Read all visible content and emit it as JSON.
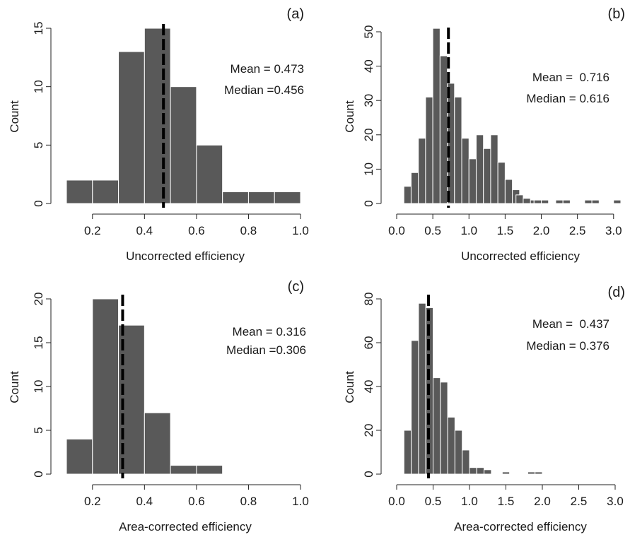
{
  "chart_data": [
    {
      "type": "bar",
      "panel_label": "(a)",
      "xlabel": "Uncorrected efficiency",
      "ylabel": "Count",
      "xlim": [
        0.1,
        1.0
      ],
      "ylim": [
        0,
        15
      ],
      "xticks": [
        "0.2",
        "0.4",
        "0.6",
        "0.8",
        "1.0"
      ],
      "yticks": [
        "0",
        "5",
        "10",
        "15"
      ],
      "bins": [
        [
          0.1,
          0.2
        ],
        [
          0.2,
          0.3
        ],
        [
          0.3,
          0.4
        ],
        [
          0.4,
          0.5
        ],
        [
          0.5,
          0.6
        ],
        [
          0.6,
          0.7
        ],
        [
          0.7,
          0.8
        ],
        [
          0.8,
          0.9
        ],
        [
          0.9,
          1.0
        ]
      ],
      "values": [
        2,
        2,
        13,
        15,
        10,
        5,
        1,
        1,
        1
      ],
      "mean_line": 0.473,
      "stats": [
        "Mean = 0.473",
        "Median =0.456"
      ],
      "bar_color": "#595959"
    },
    {
      "type": "bar",
      "panel_label": "(b)",
      "xlabel": "Uncorrected efficiency",
      "ylabel": "Count",
      "xlim": [
        0.0,
        3.1
      ],
      "ylim": [
        0,
        50
      ],
      "xticks": [
        "0.0",
        "0.5",
        "1.0",
        "1.5",
        "2.0",
        "2.5",
        "3.0"
      ],
      "yticks": [
        "0",
        "10",
        "20",
        "30",
        "40",
        "50"
      ],
      "bin_start": 0.1,
      "bin_width": 0.1,
      "values": [
        5,
        9,
        19,
        31,
        51,
        43,
        35,
        31,
        19,
        13,
        20,
        16,
        20,
        12,
        7,
        4,
        1,
        1,
        1,
        1,
        0,
        0,
        0,
        0,
        0,
        0,
        0,
        0,
        0,
        1
      ],
      "sparse_bars": [
        {
          "x": [
            1.65,
            1.75
          ],
          "value": 2.5
        },
        {
          "x": [
            1.75,
            1.85
          ],
          "value": 1.5
        },
        {
          "x": [
            2.0,
            2.1
          ],
          "value": 1
        },
        {
          "x": [
            2.2,
            2.3
          ],
          "value": 1
        },
        {
          "x": [
            2.3,
            2.4
          ],
          "value": 1
        },
        {
          "x": [
            2.6,
            2.7
          ],
          "value": 1
        },
        {
          "x": [
            2.7,
            2.8
          ],
          "value": 1
        }
      ],
      "mean_line": 0.716,
      "stats": [
        "Mean =  0.716",
        "Median = 0.616"
      ],
      "bar_color": "#595959"
    },
    {
      "type": "bar",
      "panel_label": "(c)",
      "xlabel": "Area-corrected efficiency",
      "ylabel": "Count",
      "xlim": [
        0.1,
        1.0
      ],
      "ylim": [
        0,
        20
      ],
      "xticks": [
        "0.2",
        "0.4",
        "0.6",
        "0.8",
        "1.0"
      ],
      "yticks": [
        "0",
        "5",
        "10",
        "15",
        "20"
      ],
      "bins": [
        [
          0.1,
          0.2
        ],
        [
          0.2,
          0.3
        ],
        [
          0.3,
          0.4
        ],
        [
          0.4,
          0.5
        ],
        [
          0.5,
          0.6
        ],
        [
          0.6,
          0.7
        ]
      ],
      "values": [
        4,
        20,
        17,
        7,
        1,
        1
      ],
      "mean_line": 0.316,
      "stats": [
        "Mean = 0.316",
        "Median =0.306"
      ],
      "bar_color": "#595959"
    },
    {
      "type": "bar",
      "panel_label": "(d)",
      "xlabel": "Area-corrected efficiency",
      "ylabel": "Count",
      "xlim": [
        0.0,
        3.0
      ],
      "ylim": [
        0,
        80
      ],
      "xticks": [
        "0.0",
        "0.5",
        "1.0",
        "1.5",
        "2.0",
        "2.5",
        "3.0"
      ],
      "yticks": [
        "0",
        "20",
        "40",
        "60",
        "80"
      ],
      "bin_start": 0.1,
      "bin_width": 0.1,
      "values": [
        20,
        61,
        78,
        76,
        44,
        42,
        26,
        20,
        11,
        3,
        3
      ],
      "sparse_bars": [
        {
          "x": [
            1.1,
            1.2
          ],
          "value": 3
        },
        {
          "x": [
            1.2,
            1.3
          ],
          "value": 2
        },
        {
          "x": [
            1.45,
            1.55
          ],
          "value": 1
        },
        {
          "x": [
            1.8,
            1.9
          ],
          "value": 1
        },
        {
          "x": [
            1.9,
            2.0
          ],
          "value": 1
        }
      ],
      "mean_line": 0.437,
      "stats": [
        "Mean =  0.437",
        "Median = 0.376"
      ],
      "bar_color": "#595959"
    }
  ]
}
